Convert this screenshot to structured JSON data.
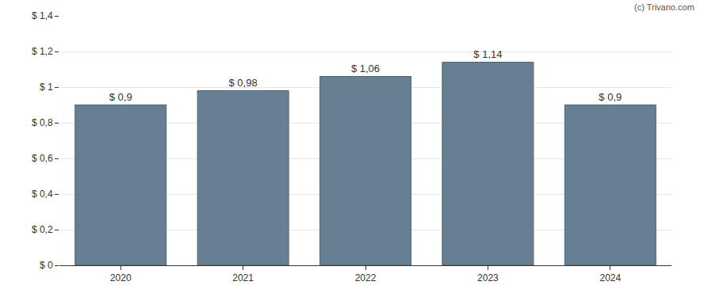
{
  "chart_data": {
    "type": "bar",
    "categories": [
      "2020",
      "2021",
      "2022",
      "2023",
      "2024"
    ],
    "values": [
      0.9,
      0.98,
      1.06,
      1.14,
      0.9
    ],
    "value_labels": [
      "$ 0,9",
      "$ 0,98",
      "$ 1,06",
      "$ 1,14",
      "$ 0,9"
    ],
    "data_labels": true,
    "color": "#667f91",
    "ylim": [
      0,
      1.4
    ],
    "yticks": [
      {
        "value": 0,
        "label": "$ 0"
      },
      {
        "value": 0.2,
        "label": "$ 0,2"
      },
      {
        "value": 0.4,
        "label": "$ 0,4"
      },
      {
        "value": 0.6,
        "label": "$ 0,6"
      },
      {
        "value": 0.8,
        "label": "$ 0,8"
      },
      {
        "value": 1,
        "label": "$ 1"
      },
      {
        "value": 1.2,
        "label": "$ 1,2"
      },
      {
        "value": 1.4,
        "label": "$ 1,4"
      }
    ],
    "grid": true,
    "annotations": [
      "(c) Trivano.com"
    ]
  }
}
